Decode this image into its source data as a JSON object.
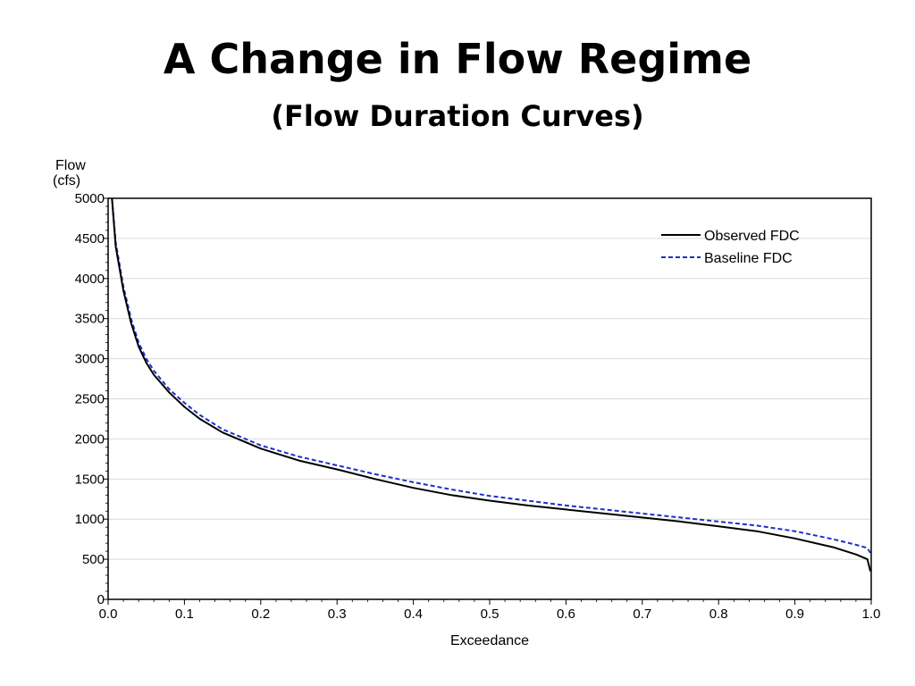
{
  "slide": {
    "title": "A Change in Flow Regime",
    "subtitle": "(Flow Duration Curves)"
  },
  "chart_data": {
    "type": "line",
    "title": "",
    "xlabel": "Exceedance",
    "ylabel_line1": "Flow",
    "ylabel_line2": "(cfs)",
    "xlim": [
      0.0,
      1.0
    ],
    "ylim": [
      0,
      5000
    ],
    "x_ticks": [
      "0.0",
      "0.1",
      "0.2",
      "0.3",
      "0.4",
      "0.5",
      "0.6",
      "0.7",
      "0.8",
      "0.9",
      "1.0"
    ],
    "y_ticks": [
      "0",
      "500",
      "1000",
      "1500",
      "2000",
      "2500",
      "3000",
      "3500",
      "4000",
      "4500",
      "5000"
    ],
    "grid": "horizontal",
    "legend_position": "top-right",
    "series": [
      {
        "name": "Observed FDC",
        "color": "#000000",
        "style": "solid",
        "points": [
          [
            0.005,
            5000
          ],
          [
            0.01,
            4400
          ],
          [
            0.02,
            3850
          ],
          [
            0.03,
            3450
          ],
          [
            0.04,
            3150
          ],
          [
            0.05,
            2950
          ],
          [
            0.06,
            2800
          ],
          [
            0.08,
            2580
          ],
          [
            0.1,
            2400
          ],
          [
            0.12,
            2250
          ],
          [
            0.15,
            2080
          ],
          [
            0.2,
            1880
          ],
          [
            0.25,
            1730
          ],
          [
            0.3,
            1620
          ],
          [
            0.35,
            1500
          ],
          [
            0.4,
            1390
          ],
          [
            0.45,
            1300
          ],
          [
            0.5,
            1230
          ],
          [
            0.55,
            1170
          ],
          [
            0.6,
            1120
          ],
          [
            0.65,
            1070
          ],
          [
            0.7,
            1020
          ],
          [
            0.75,
            970
          ],
          [
            0.8,
            910
          ],
          [
            0.85,
            850
          ],
          [
            0.9,
            760
          ],
          [
            0.95,
            650
          ],
          [
            0.98,
            560
          ],
          [
            0.995,
            500
          ],
          [
            0.999,
            350
          ]
        ]
      },
      {
        "name": "Baseline FDC",
        "color": "#1f2fc8",
        "style": "dashed",
        "points": [
          [
            0.005,
            5000
          ],
          [
            0.01,
            4450
          ],
          [
            0.02,
            3900
          ],
          [
            0.03,
            3500
          ],
          [
            0.04,
            3200
          ],
          [
            0.05,
            3000
          ],
          [
            0.06,
            2850
          ],
          [
            0.08,
            2620
          ],
          [
            0.1,
            2450
          ],
          [
            0.12,
            2300
          ],
          [
            0.15,
            2120
          ],
          [
            0.2,
            1920
          ],
          [
            0.25,
            1780
          ],
          [
            0.3,
            1670
          ],
          [
            0.35,
            1560
          ],
          [
            0.4,
            1460
          ],
          [
            0.45,
            1370
          ],
          [
            0.5,
            1290
          ],
          [
            0.55,
            1230
          ],
          [
            0.6,
            1170
          ],
          [
            0.65,
            1120
          ],
          [
            0.7,
            1070
          ],
          [
            0.75,
            1020
          ],
          [
            0.8,
            970
          ],
          [
            0.85,
            920
          ],
          [
            0.9,
            850
          ],
          [
            0.95,
            750
          ],
          [
            0.98,
            680
          ],
          [
            0.995,
            640
          ],
          [
            1.0,
            560
          ]
        ]
      }
    ]
  }
}
